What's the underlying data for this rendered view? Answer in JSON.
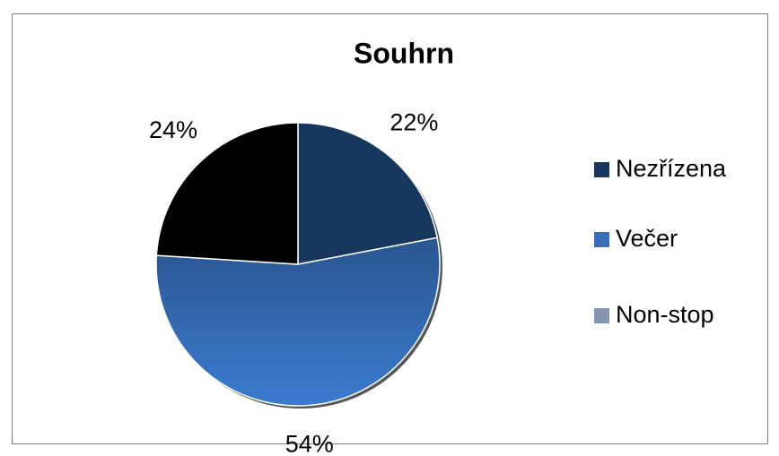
{
  "chart_data": {
    "type": "pie",
    "title": "Souhrn",
    "categories": [
      "Nezřízena",
      "Večer",
      "Non-stop"
    ],
    "values": [
      22,
      54,
      24
    ],
    "value_labels": [
      "22%",
      "54%",
      "24%"
    ],
    "colors": [
      "#17375e",
      "#2f62a8",
      "#000000"
    ],
    "legend_colors": [
      "#17375e",
      "#3a6db5",
      "#8496b0"
    ],
    "legend": "right"
  }
}
